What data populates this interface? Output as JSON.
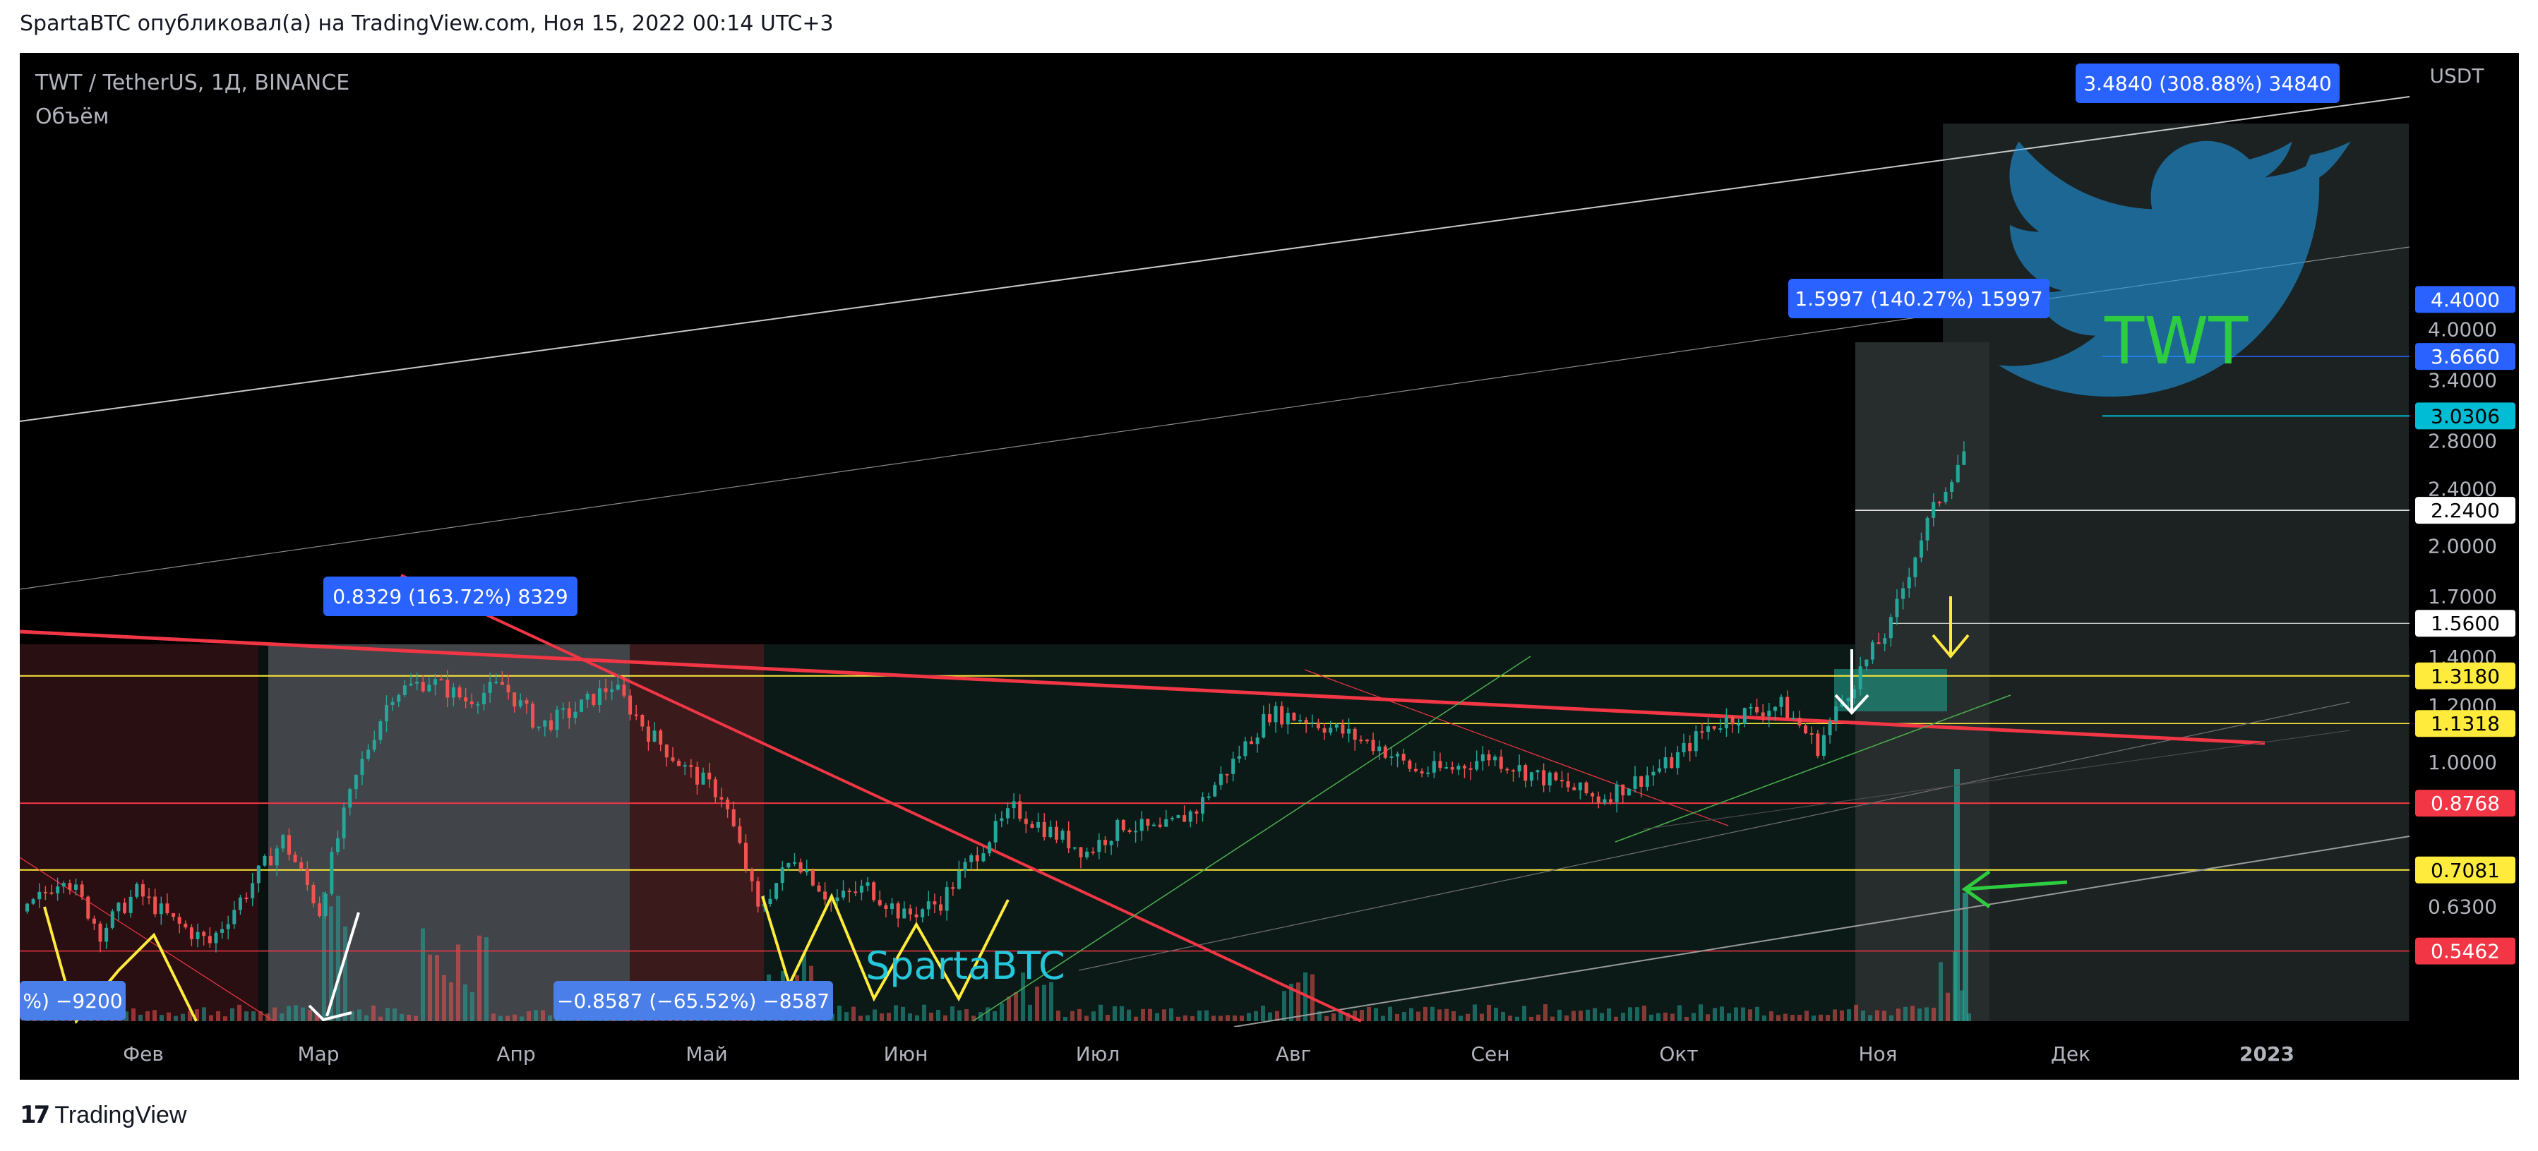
{
  "header": {
    "text": "SpartaBTC опубликовал(а) на TradingView.com, Ноя 15, 2022 00:14 UTC+3"
  },
  "footer": {
    "brand": "TradingView"
  },
  "chart_data": {
    "type": "candlestick",
    "symbol_label": "TWT / TetherUS, 1Д, BINANCE",
    "indicator_label": "Объём",
    "currency": "USDT",
    "scale": "log",
    "y_range": [
      0.5462,
      5.2
    ],
    "x_ticks": [
      "Фев",
      "Мар",
      "Апр",
      "Май",
      "Июн",
      "Июл",
      "Авг",
      "Сен",
      "Окт",
      "Ноя",
      "Дек",
      "2023"
    ],
    "y_ticks": [
      "4.0000",
      "3.4000",
      "2.8000",
      "2.4000",
      "2.0000",
      "1.7000",
      "1.4000",
      "1.2000",
      "1.0000",
      "0.6300"
    ],
    "price_tags": [
      {
        "label": "4.4000",
        "bg": "#2962ff",
        "fg": "#ffffff"
      },
      {
        "label": "3.6660",
        "bg": "#2962ff",
        "fg": "#ffffff"
      },
      {
        "label": "3.0306",
        "bg": "#00bcd4",
        "fg": "#000000"
      },
      {
        "label": "2.2400",
        "bg": "#ffffff",
        "fg": "#000000"
      },
      {
        "label": "1.5600",
        "bg": "#ffffff",
        "fg": "#000000"
      },
      {
        "label": "1.3180",
        "bg": "#ffeb3b",
        "fg": "#000000"
      },
      {
        "label": "1.1318",
        "bg": "#ffeb3b",
        "fg": "#000000"
      },
      {
        "label": "0.8768",
        "bg": "#f23645",
        "fg": "#ffffff"
      },
      {
        "label": "0.7081",
        "bg": "#ffeb3b",
        "fg": "#000000"
      },
      {
        "label": "0.5462",
        "bg": "#f23645",
        "fg": "#ffffff"
      }
    ],
    "measure_labels": [
      "3.4840 (308.88%) 34840",
      "1.5997 (140.27%) 15997",
      "0.8329 (163.72%) 8329",
      "−0.8587 (−65.52%) −8587",
      "%) −9200"
    ],
    "annotations": [
      "SpartaBTC",
      "TWT"
    ],
    "close_points": [
      [
        "Янв",
        0.62
      ],
      [
        "Янв",
        0.7
      ],
      [
        "Фев",
        0.58
      ],
      [
        "Фев",
        0.66
      ],
      [
        "Фев",
        0.6
      ],
      [
        "Мар",
        0.56
      ],
      [
        "Мар",
        0.66
      ],
      [
        "Мар",
        0.78
      ],
      [
        "Мар",
        0.62
      ],
      [
        "Апр",
        0.95
      ],
      [
        "Апр",
        1.25
      ],
      [
        "Апр",
        1.3
      ],
      [
        "Апр",
        1.22
      ],
      [
        "Апр",
        1.28
      ],
      [
        "Апр",
        1.12
      ],
      [
        "Май",
        1.18
      ],
      [
        "Май",
        1.28
      ],
      [
        "Май",
        1.1
      ],
      [
        "Май",
        0.98
      ],
      [
        "Май",
        0.9
      ],
      [
        "Май",
        0.62
      ],
      [
        "Июн",
        0.74
      ],
      [
        "Июн",
        0.64
      ],
      [
        "Июн",
        0.67
      ],
      [
        "Июн",
        0.61
      ],
      [
        "Июн",
        0.64
      ],
      [
        "Июн",
        0.75
      ],
      [
        "Июл",
        0.86
      ],
      [
        "Июл",
        0.8
      ],
      [
        "Июл",
        0.75
      ],
      [
        "Июл",
        0.82
      ],
      [
        "Июл",
        0.8
      ],
      [
        "Июл",
        0.86
      ],
      [
        "Авг",
        1.0
      ],
      [
        "Авг",
        1.17
      ],
      [
        "Авг",
        1.15
      ],
      [
        "Авг",
        1.1
      ],
      [
        "Сен",
        1.05
      ],
      [
        "Сен",
        0.97
      ],
      [
        "Сен",
        0.98
      ],
      [
        "Сен",
        1.02
      ],
      [
        "Сен",
        0.97
      ],
      [
        "Окт",
        0.93
      ],
      [
        "Окт",
        0.89
      ],
      [
        "Окт",
        0.94
      ],
      [
        "Окт",
        1.0
      ],
      [
        "Ноя",
        1.12
      ],
      [
        "Ноя",
        1.17
      ],
      [
        "Ноя",
        1.2
      ],
      [
        "Ноя",
        1.05
      ],
      [
        "Ноя",
        1.3
      ],
      [
        "Ноя",
        1.55
      ],
      [
        "Ноя",
        2.15
      ],
      [
        "Ноя",
        2.7
      ]
    ]
  }
}
